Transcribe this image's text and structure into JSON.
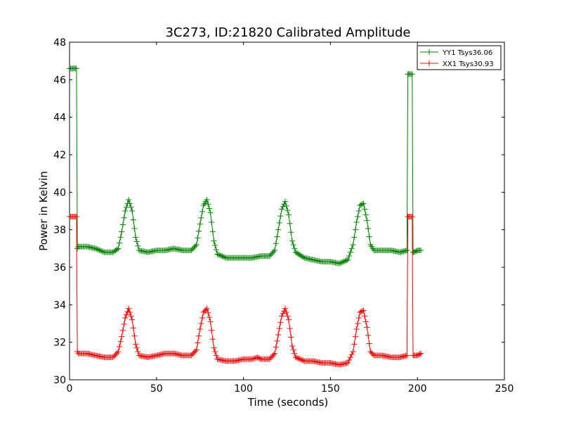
{
  "chart_data": {
    "type": "line",
    "title": "3C273, ID:21820 Calibrated Amplitude",
    "xlabel": "Time (seconds)",
    "ylabel": "Power in Kelvin",
    "xlim": [
      0,
      250
    ],
    "ylim": [
      30,
      48
    ],
    "xticks": [
      "0",
      "50",
      "100",
      "150",
      "200",
      "250"
    ],
    "yticks": [
      "30",
      "32",
      "34",
      "36",
      "38",
      "40",
      "42",
      "44",
      "46",
      "48"
    ],
    "grid": false,
    "legend_position": "top-right",
    "marker": "+",
    "series": [
      {
        "name": "YY1 Tsys36.06",
        "color": "#008000",
        "x": [
          0,
          2,
          4,
          4.5,
          5,
          10,
          15,
          20,
          25,
          28,
          30,
          32,
          34,
          36,
          38,
          40,
          45,
          50,
          55,
          60,
          65,
          70,
          73,
          75,
          77,
          79,
          81,
          83,
          85,
          90,
          95,
          100,
          105,
          110,
          115,
          118,
          120,
          122,
          124,
          126,
          128,
          130,
          135,
          140,
          145,
          150,
          155,
          160,
          163,
          165,
          167,
          169,
          171,
          173,
          175,
          180,
          185,
          190,
          194,
          194.5,
          195,
          197,
          197.5,
          198,
          200,
          202
        ],
        "y": [
          46.6,
          46.6,
          46.6,
          37.0,
          37.1,
          37.1,
          37.0,
          36.8,
          36.8,
          37.0,
          37.9,
          39.0,
          39.6,
          39.0,
          37.6,
          36.9,
          36.8,
          36.9,
          36.9,
          37.0,
          36.9,
          36.9,
          37.2,
          38.3,
          39.3,
          39.6,
          38.9,
          37.4,
          36.7,
          36.5,
          36.5,
          36.5,
          36.5,
          36.6,
          36.6,
          36.9,
          38.0,
          39.1,
          39.5,
          38.8,
          37.4,
          36.8,
          36.5,
          36.4,
          36.3,
          36.3,
          36.2,
          36.4,
          37.2,
          38.4,
          39.3,
          39.4,
          38.5,
          37.2,
          36.9,
          36.9,
          36.9,
          36.8,
          36.9,
          46.3,
          46.3,
          46.3,
          36.8,
          36.8,
          36.9,
          36.9
        ]
      },
      {
        "name": "XX1 Tsys30.93",
        "color": "#ff0000",
        "x": [
          0,
          2,
          4,
          4.5,
          5,
          10,
          15,
          20,
          25,
          28,
          30,
          32,
          34,
          36,
          38,
          40,
          45,
          50,
          55,
          60,
          65,
          70,
          73,
          75,
          77,
          79,
          81,
          83,
          85,
          90,
          95,
          100,
          105,
          108,
          110,
          115,
          118,
          120,
          122,
          124,
          126,
          128,
          130,
          135,
          140,
          145,
          150,
          155,
          160,
          163,
          165,
          167,
          169,
          171,
          173,
          175,
          180,
          185,
          190,
          194,
          194.5,
          195,
          197,
          197.5,
          198,
          200,
          202
        ],
        "y": [
          38.7,
          38.7,
          38.7,
          31.5,
          31.4,
          31.4,
          31.3,
          31.2,
          31.2,
          31.5,
          32.3,
          33.3,
          33.8,
          33.2,
          31.9,
          31.3,
          31.2,
          31.3,
          31.4,
          31.4,
          31.3,
          31.3,
          31.6,
          32.7,
          33.6,
          33.8,
          33.1,
          31.7,
          31.1,
          31.0,
          31.0,
          31.1,
          31.1,
          31.2,
          31.1,
          31.1,
          31.4,
          32.4,
          33.4,
          33.8,
          33.2,
          31.8,
          31.2,
          31.0,
          31.0,
          30.9,
          30.9,
          30.8,
          30.9,
          31.5,
          32.7,
          33.6,
          33.7,
          32.8,
          31.5,
          31.3,
          31.3,
          31.2,
          31.2,
          31.3,
          38.7,
          38.7,
          38.7,
          31.3,
          31.3,
          31.3,
          31.4
        ]
      }
    ]
  }
}
